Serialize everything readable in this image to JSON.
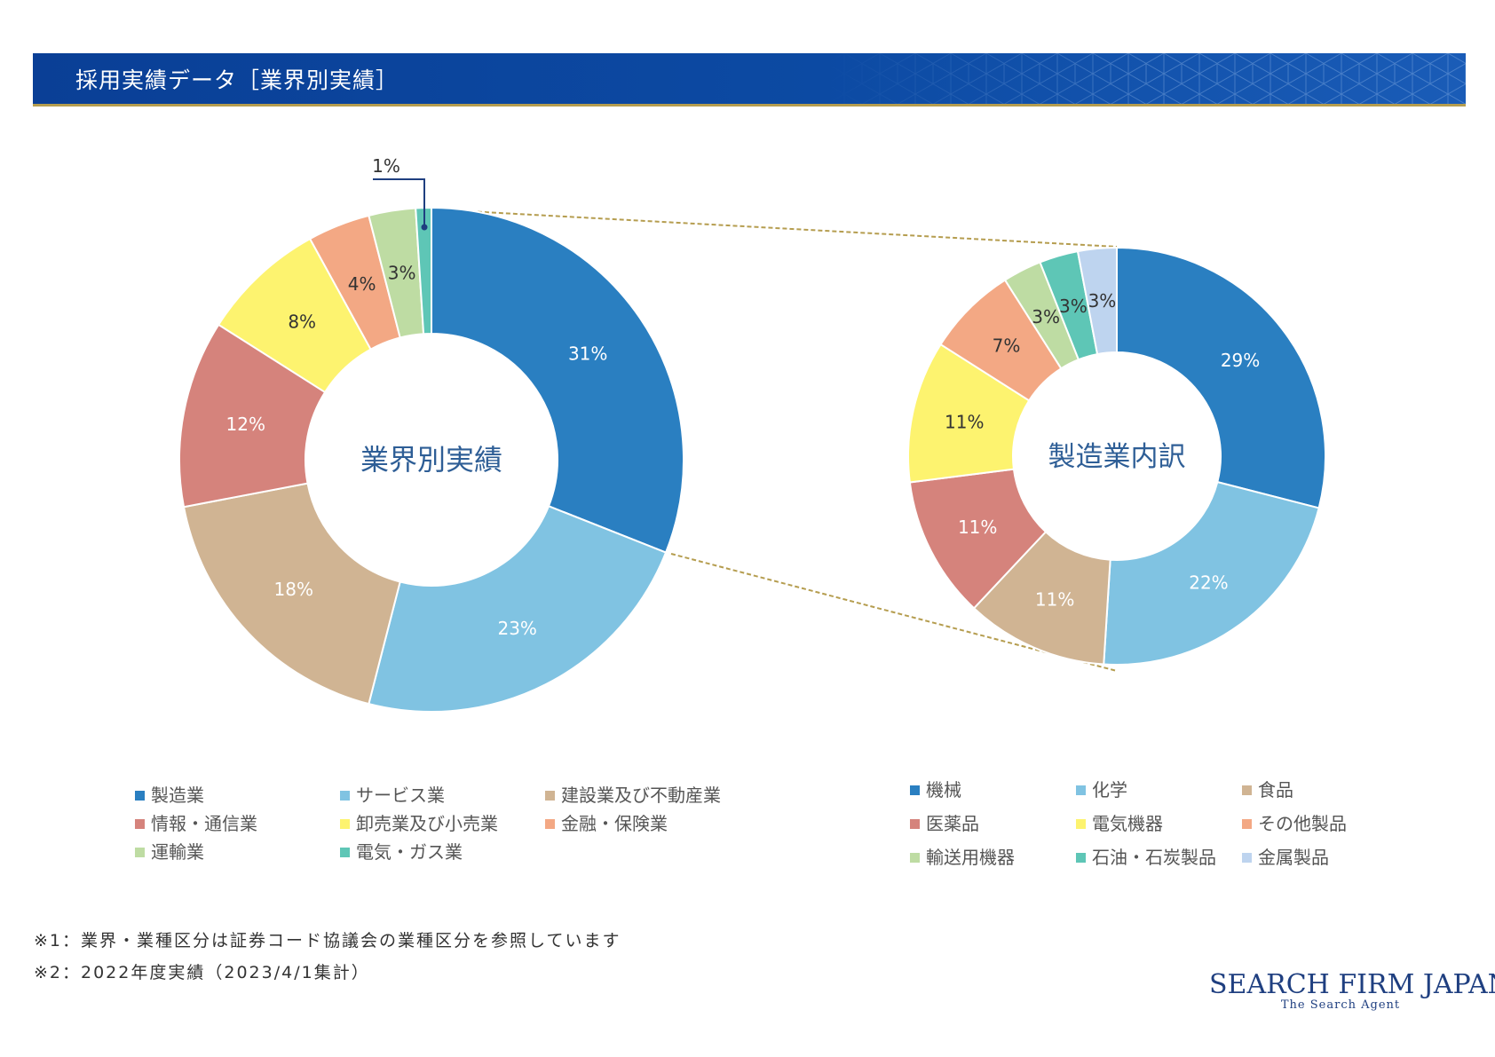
{
  "header": {
    "title": "採用実績データ［業界別実績］"
  },
  "colors": {
    "header_bg": "#0c4aa3",
    "connector": "#b59d4f",
    "callout": "#1f3f80",
    "center_text": "#2e5e96"
  },
  "chart_data": [
    {
      "type": "pie",
      "center_label": "業界別実績",
      "callout_label": "1%",
      "categories": [
        "製造業",
        "サービス業",
        "建設業及び不動産業",
        "情報・通信業",
        "卸売業及び小売業",
        "金融・保険業",
        "運輸業",
        "電気・ガス業"
      ],
      "values": [
        31,
        23,
        18,
        12,
        8,
        4,
        3,
        1
      ],
      "labels": [
        "31%",
        "23%",
        "18%",
        "12%",
        "8%",
        "4%",
        "3%",
        ""
      ],
      "colors": [
        "#2a7fc1",
        "#80c3e2",
        "#d0b493",
        "#d5837c",
        "#fdf36f",
        "#f3a884",
        "#bedca3",
        "#5ec6b6"
      ],
      "label_colors": [
        "#ffffff",
        "#ffffff",
        "#ffffff",
        "#ffffff",
        "#333333",
        "#333333",
        "#333333",
        "#333333"
      ]
    },
    {
      "type": "pie",
      "center_label": "製造業内訳",
      "categories": [
        "機械",
        "化学",
        "食品",
        "医薬品",
        "電気機器",
        "その他製品",
        "輸送用機器",
        "石油・石炭製品",
        "金属製品"
      ],
      "values": [
        29,
        22,
        11,
        11,
        11,
        7,
        3,
        3,
        3
      ],
      "labels": [
        "29%",
        "22%",
        "11%",
        "11%",
        "11%",
        "7%",
        "3%",
        "3%",
        "3%"
      ],
      "colors": [
        "#2a7fc1",
        "#80c3e2",
        "#d0b493",
        "#d5837c",
        "#fdf36f",
        "#f3a884",
        "#bedca3",
        "#5ec6b6",
        "#bed4ef"
      ],
      "label_colors": [
        "#ffffff",
        "#ffffff",
        "#ffffff",
        "#ffffff",
        "#333333",
        "#333333",
        "#333333",
        "#333333",
        "#333333"
      ]
    }
  ],
  "legend_left": [
    {
      "label": "製造業",
      "color": "#2a7fc1"
    },
    {
      "label": "サービス業",
      "color": "#80c3e2"
    },
    {
      "label": "建設業及び不動産業",
      "color": "#d0b493"
    },
    {
      "label": "情報・通信業",
      "color": "#d5837c"
    },
    {
      "label": "卸売業及び小売業",
      "color": "#fdf36f"
    },
    {
      "label": "金融・保険業",
      "color": "#f3a884"
    },
    {
      "label": "運輸業",
      "color": "#bedca3"
    },
    {
      "label": "電気・ガス業",
      "color": "#5ec6b6"
    }
  ],
  "legend_right": [
    {
      "label": "機械",
      "color": "#2a7fc1"
    },
    {
      "label": "化学",
      "color": "#80c3e2"
    },
    {
      "label": "食品",
      "color": "#d0b493"
    },
    {
      "label": "医薬品",
      "color": "#d5837c"
    },
    {
      "label": "電気機器",
      "color": "#fdf36f"
    },
    {
      "label": "その他製品",
      "color": "#f3a884"
    },
    {
      "label": "輸送用機器",
      "color": "#bedca3"
    },
    {
      "label": "石油・石炭製品",
      "color": "#5ec6b6"
    },
    {
      "label": "金属製品",
      "color": "#bed4ef"
    }
  ],
  "footnotes": [
    "※1：業界・業種区分は証券コード協議会の業種区分を参照しています",
    "※2：2022年度実績（2023/4/1集計）"
  ],
  "logo": {
    "main": "SEARCH FIRM JAPAN",
    "sub": "The Search Agent"
  }
}
